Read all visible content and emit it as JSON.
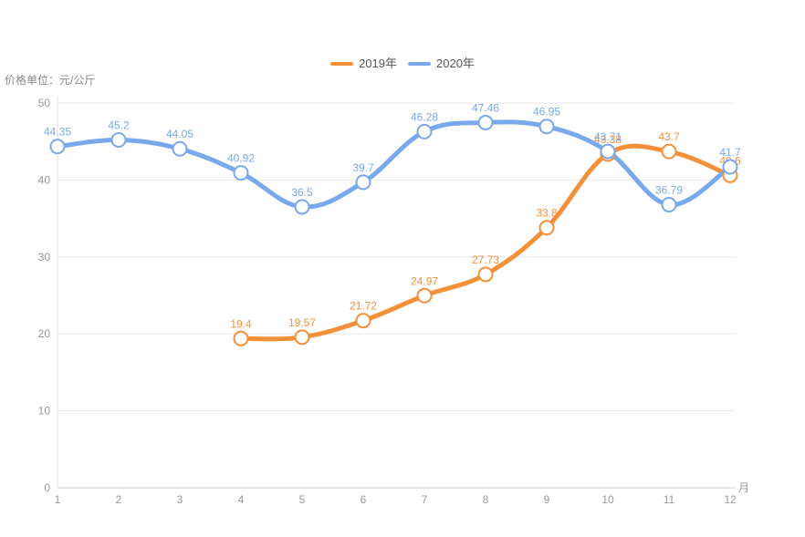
{
  "y_axis_title": "价格单位：元/公斤",
  "legend": {
    "items": [
      "2019年",
      "2020年"
    ]
  },
  "chart_data": {
    "type": "line",
    "x": [
      "1",
      "2",
      "3",
      "4",
      "5",
      "6",
      "7",
      "8",
      "9",
      "10",
      "11",
      "12"
    ],
    "xlabel": "月",
    "ylabel": "价格单位：元/公斤",
    "ylim": [
      0,
      50
    ],
    "ytick_step": 10,
    "yticks": [
      "0",
      "10",
      "20",
      "30",
      "40",
      "50"
    ],
    "grid": true,
    "smooth": true,
    "legend_position": "top-center",
    "marker_style": "hollow-circle",
    "series": [
      {
        "id": "2019",
        "name": "2019年",
        "color": "#F49038",
        "values": [
          null,
          null,
          null,
          19.4,
          19.57,
          21.72,
          24.97,
          27.73,
          33.8,
          43.38,
          43.7,
          40.6
        ]
      },
      {
        "id": "2020",
        "name": "2020年",
        "color": "#78A9EC",
        "values": [
          44.35,
          45.2,
          44.05,
          40.92,
          36.5,
          39.7,
          46.28,
          47.46,
          46.95,
          43.71,
          36.79,
          41.7
        ]
      }
    ],
    "colors": {
      "grid_line": "#E8E8E8",
      "x_axis_line": "#CCCCCC",
      "y_axis_line": "#E0E0E0",
      "axis_text": "#999999",
      "legend_text": "#565656",
      "title_text": "#8A8A8A",
      "marker_fill": "#FFFFFF"
    }
  }
}
